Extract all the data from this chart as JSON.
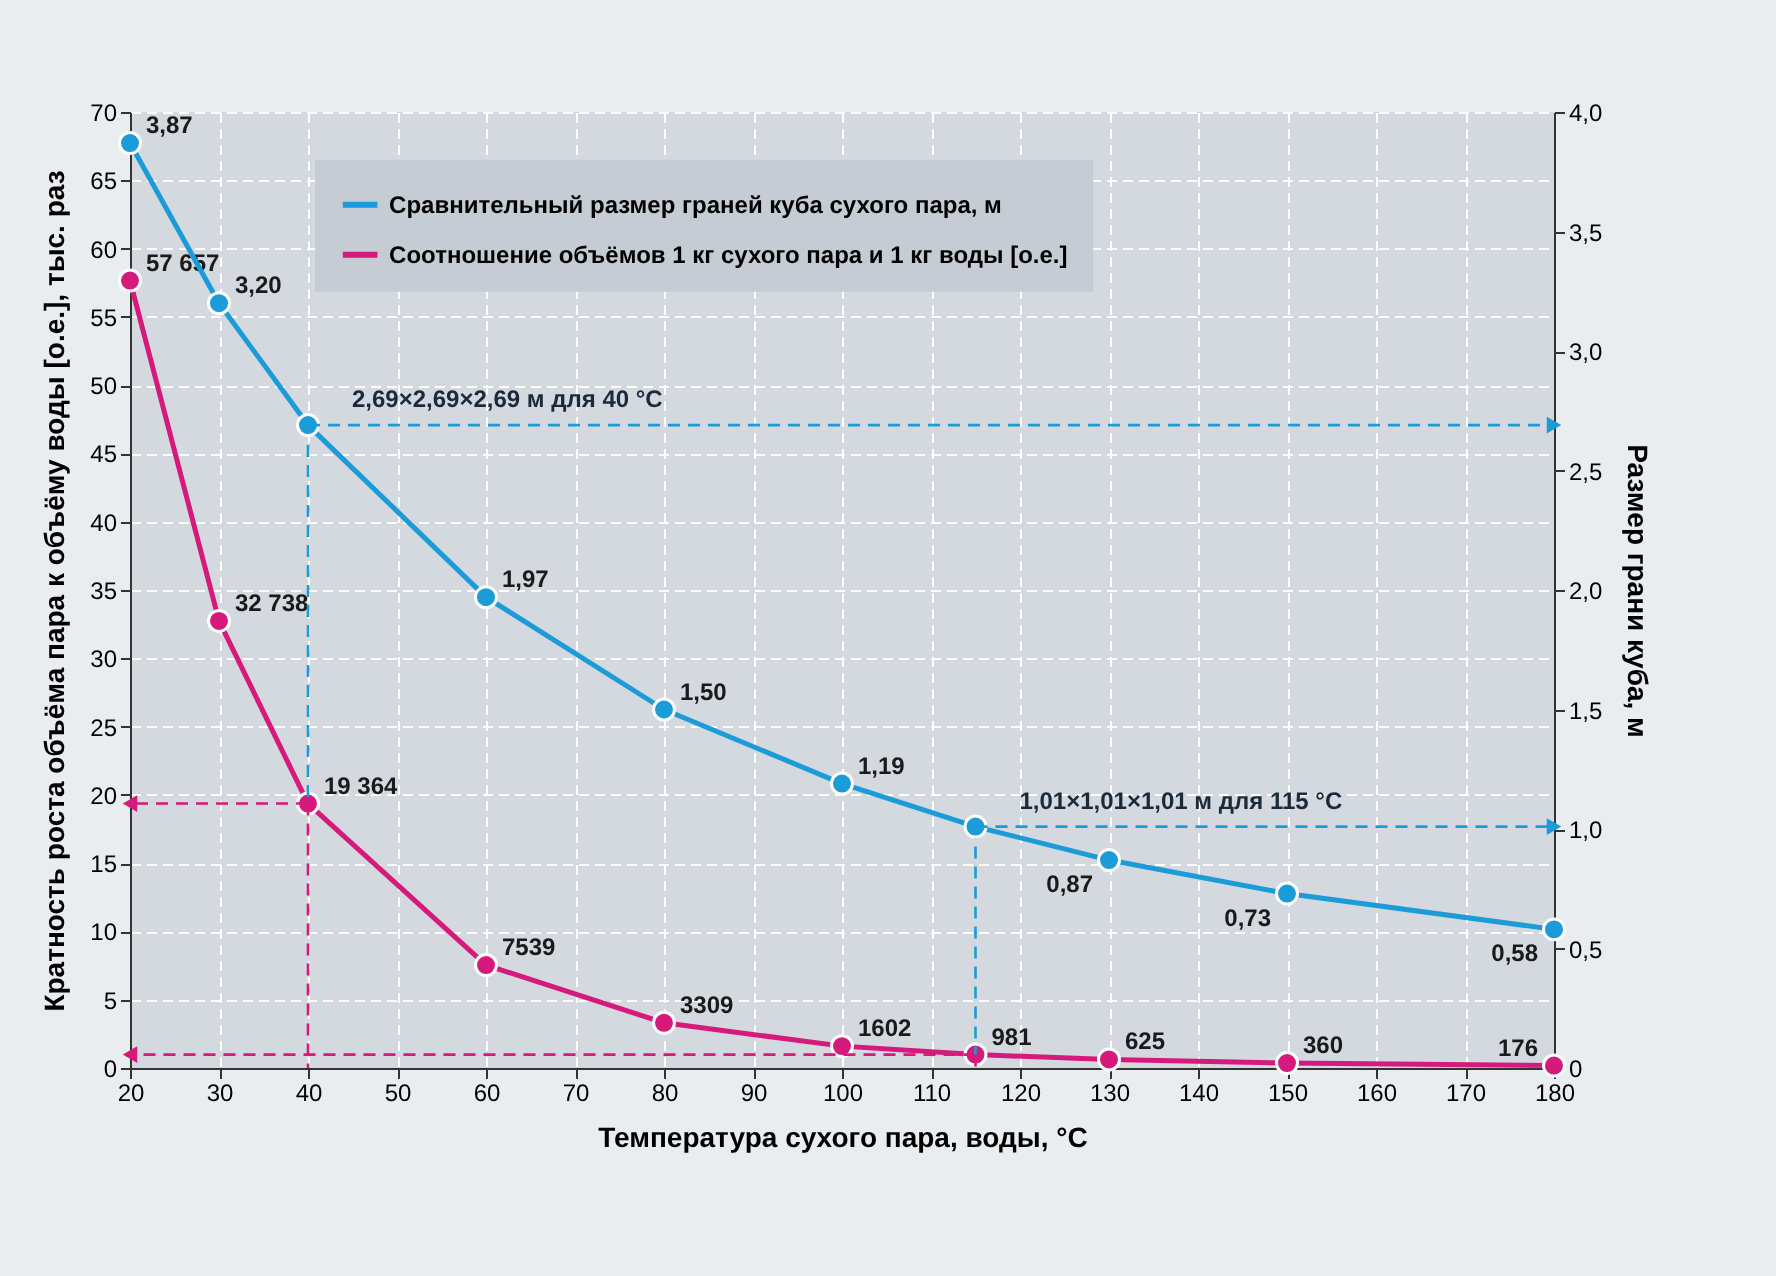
{
  "chart_data": {
    "type": "line",
    "xlabel": "Температура сухого пара, воды, °C",
    "ylabel": "Кратность роста объёма пара к объёму воды [о.е.], тыс. раз",
    "y2label": "Размер грани куба, м",
    "x": [
      20,
      30,
      40,
      60,
      80,
      100,
      115,
      130,
      150,
      180
    ],
    "series": [
      {
        "name": "Сравнительный размер граней куба сухого пара, м",
        "color": "#1b9bd7",
        "axis": "y2",
        "values": [
          3.87,
          3.2,
          2.69,
          1.97,
          1.5,
          1.19,
          1.01,
          0.87,
          0.73,
          0.58
        ],
        "value_labels": [
          "3,87",
          "3,20",
          null,
          "1,97",
          "1,50",
          "1,19",
          null,
          "0,87",
          "0,73",
          "0,58"
        ]
      },
      {
        "name": "Соотношение объёмов 1 кг сухого пара и 1 кг воды [о.е.]",
        "color": "#d61a7b",
        "axis": "y",
        "values": [
          57.657,
          32.738,
          19.364,
          7.539,
          3.309,
          1.602,
          0.981,
          0.625,
          0.36,
          0.176
        ]
      }
    ],
    "xlim": [
      20,
      180
    ],
    "xticks": [
      20,
      30,
      40,
      50,
      60,
      70,
      80,
      90,
      100,
      110,
      120,
      130,
      140,
      150,
      160,
      170,
      180
    ],
    "ylim": [
      0,
      70
    ],
    "yticks": [
      0,
      5,
      10,
      15,
      20,
      25,
      30,
      35,
      40,
      45,
      50,
      55,
      60,
      65,
      70
    ],
    "annotations": [
      {
        "text": "57 657",
        "x": 20,
        "y": 57.657
      },
      {
        "text": "32 738",
        "x": 30,
        "y": 32.738
      },
      {
        "text": "19 364",
        "x": 40,
        "y": 19.364
      },
      {
        "text": "7539",
        "x": 60,
        "y": 7.539
      },
      {
        "text": "3309",
        "x": 80,
        "y": 3.309
      },
      {
        "text": "1602",
        "x": 100,
        "y": 1.602
      },
      {
        "text": "981",
        "x": 115,
        "y": 0.981
      },
      {
        "text": "625",
        "x": 130,
        "y": 0.625
      },
      {
        "text": "360",
        "x": 150,
        "y": 0.36
      },
      {
        "text": "176",
        "x": 180,
        "y": 0.176
      }
    ],
    "y2lim": [
      0,
      4
    ],
    "y2ticks": [
      {
        "value": 0,
        "label": "0"
      },
      {
        "value": 0.5,
        "label": "0,5"
      },
      {
        "value": 1,
        "label": "1,0"
      },
      {
        "value": 1.5,
        "label": "1,5"
      },
      {
        "value": 2,
        "label": "2,0"
      },
      {
        "value": 2.5,
        "label": "2,5"
      },
      {
        "value": 3,
        "label": "3,0"
      },
      {
        "value": 3.5,
        "label": "3,5"
      },
      {
        "value": 4,
        "label": "4,0"
      }
    ],
    "ref_lines": [
      {
        "axis": "y2",
        "value": 2.69,
        "label": "2,69×2,69×2,69 м для 40 °C",
        "color": "#1b9bd7",
        "line_style": "dashed"
      },
      {
        "axis": "y2",
        "value": 1.01,
        "label": "1,01×1,01×1,01 м для 115 °C",
        "color": "#1b9bd7",
        "line_style": "dashed"
      },
      {
        "axis": "y",
        "value": 19.364,
        "color": "#d61a7b",
        "line_style": "dashed"
      },
      {
        "axis": "y",
        "value": 0.981,
        "color": "#d61a7b",
        "line_style": "dashed"
      },
      {
        "axis": "x",
        "value": 40,
        "line_style": "dashed"
      },
      {
        "axis": "x",
        "value": 115,
        "line_style": "dashed"
      }
    ],
    "grid": true,
    "legend": "top left",
    "marker": "circle",
    "line_style": "solid"
  }
}
